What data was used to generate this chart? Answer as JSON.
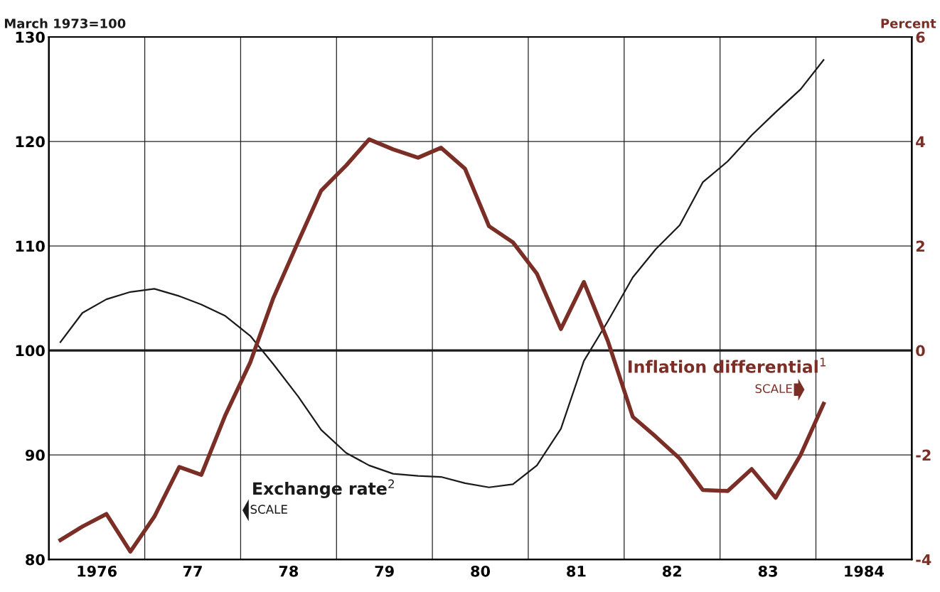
{
  "chart_data": {
    "type": "line",
    "ylabel": "March 1973=100",
    "y2label": "Percent",
    "x": [
      1975.62,
      1975.85,
      1976.1,
      1976.35,
      1976.6,
      1976.86,
      1977.09,
      1977.34,
      1977.6,
      1977.84,
      1978.1,
      1978.34,
      1978.6,
      1978.84,
      1979.09,
      1979.35,
      1979.59,
      1979.84,
      1980.09,
      1980.34,
      1980.59,
      1980.84,
      1981.08,
      1981.33,
      1981.59,
      1981.83,
      1982.08,
      1982.32,
      1982.58,
      1982.83,
      1983.08,
      1983.34,
      1983.58
    ],
    "series": [
      {
        "color": "#1a1a1a",
        "values": [
          100.8,
          103.6,
          104.9,
          105.6,
          105.9,
          105.2,
          104.4,
          103.3,
          101.4,
          98.7,
          95.6,
          92.4,
          90.2,
          89.0,
          88.2,
          88.0,
          87.9,
          87.3,
          86.9,
          87.2,
          89.0,
          92.5,
          99.0,
          102.8,
          107.0,
          109.7,
          112.0,
          116.1,
          118.1,
          120.6,
          122.8,
          125.0,
          127.8
        ]
      },
      {
        "color": "#7a2e26",
        "axis": "y2",
        "values": [
          -3.63,
          -3.37,
          -3.13,
          -3.85,
          -3.18,
          -2.23,
          -2.38,
          -1.24,
          -0.23,
          1.0,
          2.08,
          3.06,
          3.54,
          4.04,
          3.85,
          3.69,
          3.88,
          3.48,
          2.38,
          2.07,
          1.47,
          0.41,
          1.31,
          0.18,
          -1.27,
          -1.65,
          -2.07,
          -2.67,
          -2.69,
          -2.27,
          -2.82,
          -2.0,
          -1.02
        ]
      }
    ],
    "xlim": [
      1975.5,
      1984.5
    ],
    "xticks": [
      {
        "value": 1975.5,
        "label": null
      },
      {
        "value": 1976,
        "label": "1976"
      },
      {
        "value": 1976.5,
        "label": null
      },
      {
        "value": 1977,
        "label": "77"
      },
      {
        "value": 1977.5,
        "label": null
      },
      {
        "value": 1978,
        "label": "78"
      },
      {
        "value": 1978.5,
        "label": null
      },
      {
        "value": 1979,
        "label": "79"
      },
      {
        "value": 1979.5,
        "label": null
      },
      {
        "value": 1980,
        "label": "80"
      },
      {
        "value": 1980.5,
        "label": null
      },
      {
        "value": 1981,
        "label": "81"
      },
      {
        "value": 1981.5,
        "label": null
      },
      {
        "value": 1982,
        "label": "82"
      },
      {
        "value": 1982.5,
        "label": null
      },
      {
        "value": 1983,
        "label": "83"
      },
      {
        "value": 1983.5,
        "label": null
      },
      {
        "value": 1984,
        "label": "1984"
      },
      {
        "value": 1984.5,
        "label": null
      }
    ],
    "ylim": [
      80,
      130
    ],
    "yticks": [
      80,
      90,
      100,
      110,
      120,
      130
    ],
    "y2lim": [
      -4,
      6
    ],
    "y2ticks": [
      -4,
      -2,
      0,
      2,
      4,
      6
    ],
    "ref_lines": [
      {
        "axis": "y",
        "value": 100,
        "color": "#1a1a1a"
      }
    ],
    "annotations": [
      "Exchange rate$^{2}$",
      "SCALE",
      "Inflation differential$^{1}$",
      "SCALE"
    ],
    "grid": true,
    "legend": false,
    "marker": "none",
    "line_style": "solid"
  }
}
